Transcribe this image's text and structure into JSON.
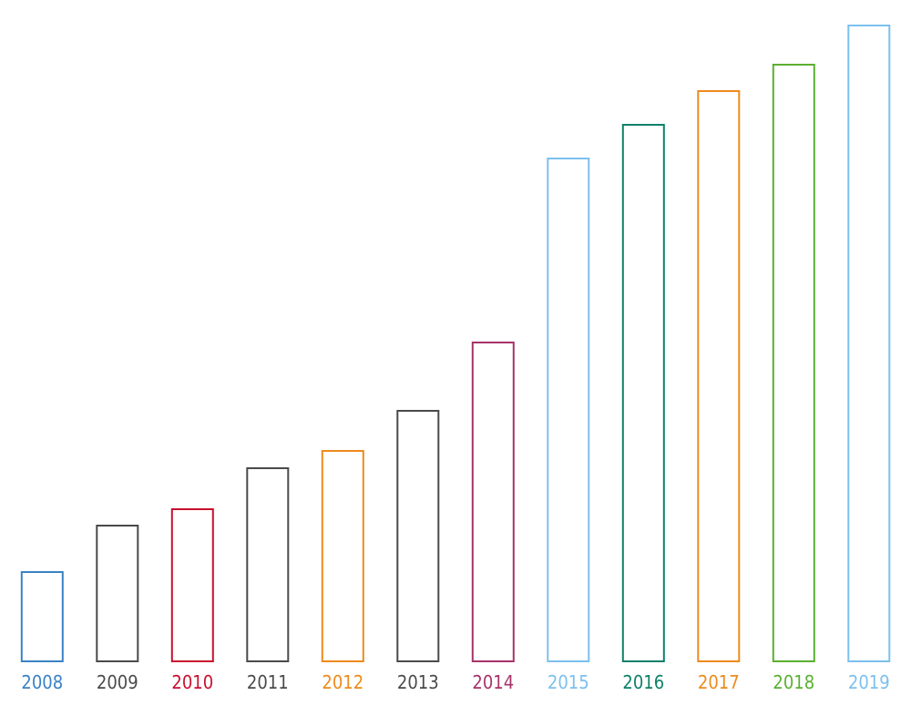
{
  "chart_data": {
    "type": "bar",
    "title": "",
    "xlabel": "",
    "ylabel": "",
    "grid": false,
    "legend": "none",
    "style": "outlined bars, no fill, no y-axis",
    "categories": [
      "2008",
      "2009",
      "2010",
      "2011",
      "2012",
      "2013",
      "2014",
      "2015",
      "2016",
      "2017",
      "2018",
      "2019"
    ],
    "values": [
      98,
      149,
      167,
      212,
      231,
      275,
      350,
      552,
      589,
      626,
      655,
      698
    ],
    "colors": [
      "#3a82c4",
      "#4a4a4a",
      "#c8102e",
      "#4a4a4a",
      "#ee8a1c",
      "#4a4a4a",
      "#a8326a",
      "#7cc0ee",
      "#0e8068",
      "#ee8a1c",
      "#5ab031",
      "#7cc0ee"
    ],
    "ylim": [
      0,
      720
    ]
  }
}
